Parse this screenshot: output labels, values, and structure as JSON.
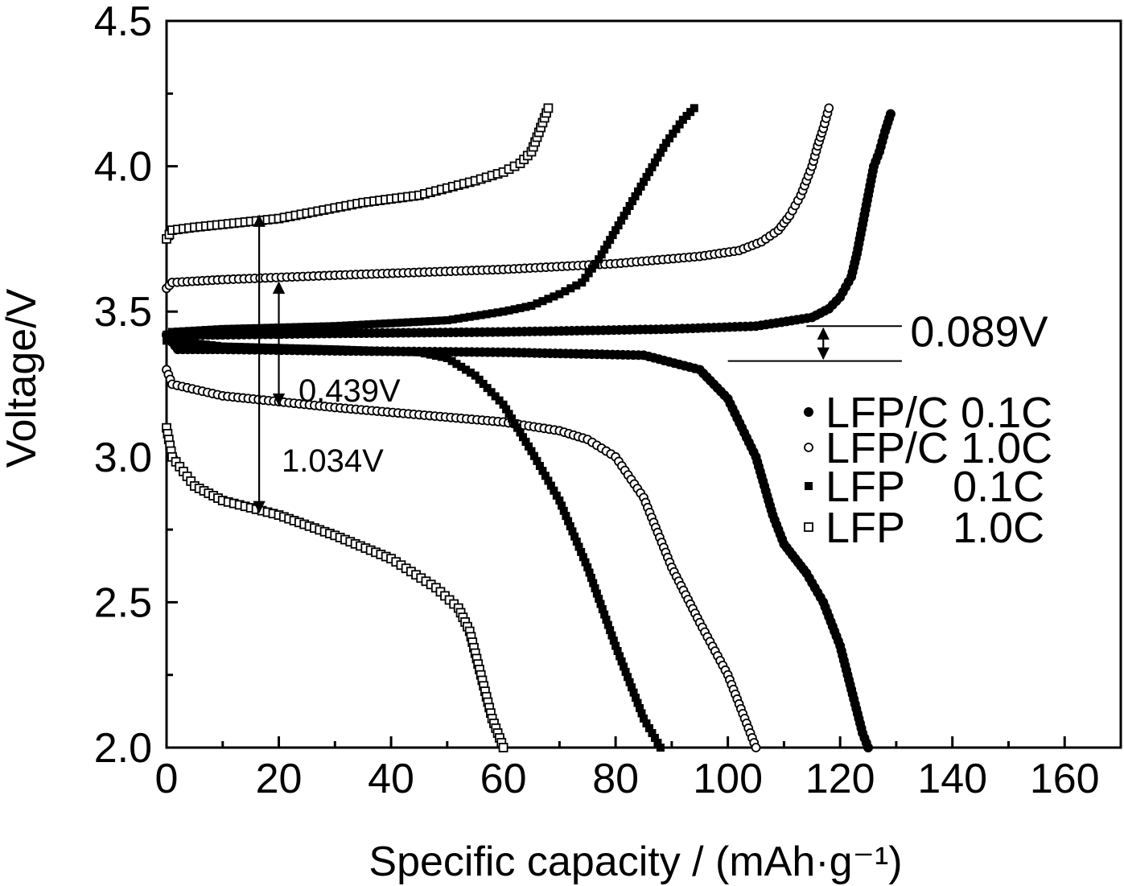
{
  "chart_data": {
    "type": "scatter",
    "title": "",
    "xlabel": "Specific capacity / (mAh·g⁻¹)",
    "ylabel": "Voltage/V",
    "xlim": [
      0,
      170
    ],
    "ylim": [
      2.0,
      4.5
    ],
    "xticks": [
      0,
      20,
      40,
      60,
      80,
      100,
      120,
      140,
      160
    ],
    "yticks": [
      2.0,
      2.5,
      3.0,
      3.5,
      4.0,
      4.5
    ],
    "xtick_labels": [
      "0",
      "20",
      "40",
      "60",
      "80",
      "100",
      "120",
      "140",
      "160"
    ],
    "ytick_labels": [
      "2.0",
      "2.5",
      "3.0",
      "3.5",
      "4.0",
      "4.5"
    ],
    "legend_position": "right-center",
    "series": [
      {
        "name": "LFP/C 0.1C",
        "legend_label": "LFP/C 0.1C",
        "marker": "filled-circle",
        "charge": {
          "x": [
            0,
            2,
            10,
            30,
            60,
            90,
            105,
            115,
            118,
            120,
            122,
            123,
            124,
            125,
            126,
            127,
            128,
            129
          ],
          "y": [
            3.42,
            3.42,
            3.42,
            3.425,
            3.43,
            3.44,
            3.45,
            3.48,
            3.51,
            3.55,
            3.62,
            3.7,
            3.8,
            3.9,
            4.0,
            4.05,
            4.12,
            4.18
          ]
        },
        "discharge": {
          "x": [
            0,
            2,
            10,
            30,
            60,
            85,
            95,
            100,
            105,
            108,
            110,
            112,
            114,
            117,
            120,
            122,
            124,
            125
          ],
          "y": [
            3.42,
            3.37,
            3.37,
            3.365,
            3.36,
            3.35,
            3.3,
            3.2,
            3.0,
            2.8,
            2.7,
            2.65,
            2.6,
            2.5,
            2.35,
            2.2,
            2.05,
            2.0
          ]
        }
      },
      {
        "name": "LFP/C 1.0C",
        "legend_label": "LFP/C 1.0C",
        "marker": "open-circle",
        "charge": {
          "x": [
            0,
            1,
            10,
            30,
            60,
            80,
            95,
            102,
            106,
            109,
            111,
            113,
            114,
            115,
            116,
            117,
            118
          ],
          "y": [
            3.58,
            3.6,
            3.61,
            3.625,
            3.645,
            3.665,
            3.69,
            3.71,
            3.74,
            3.78,
            3.83,
            3.9,
            3.95,
            4.0,
            4.07,
            4.13,
            4.2
          ]
        },
        "discharge": {
          "x": [
            0,
            1,
            10,
            30,
            60,
            70,
            75,
            80,
            85,
            90,
            95,
            100,
            103,
            105
          ],
          "y": [
            3.3,
            3.25,
            3.21,
            3.17,
            3.12,
            3.09,
            3.06,
            3.0,
            2.86,
            2.62,
            2.43,
            2.25,
            2.1,
            2.0
          ]
        }
      },
      {
        "name": "LFP 0.1C",
        "legend_label": "LFP    0.1C",
        "marker": "filled-square",
        "charge": {
          "x": [
            0,
            1,
            10,
            30,
            50,
            60,
            65,
            70,
            74,
            77,
            80,
            83,
            86,
            89,
            92,
            94
          ],
          "y": [
            3.4,
            3.43,
            3.44,
            3.45,
            3.47,
            3.5,
            3.52,
            3.56,
            3.6,
            3.68,
            3.78,
            3.88,
            3.98,
            4.08,
            4.16,
            4.2
          ]
        },
        "discharge": {
          "x": [
            0,
            1,
            10,
            30,
            45,
            50,
            55,
            60,
            65,
            70,
            75,
            80,
            85,
            88
          ],
          "y": [
            3.42,
            3.4,
            3.38,
            3.37,
            3.36,
            3.34,
            3.28,
            3.18,
            3.02,
            2.85,
            2.62,
            2.35,
            2.1,
            2.0
          ]
        }
      },
      {
        "name": "LFP 1.0C",
        "legend_label": "LFP    1.0C",
        "marker": "open-square",
        "charge": {
          "x": [
            0,
            1,
            5,
            20,
            35,
            45,
            55,
            60,
            63,
            65,
            66,
            67,
            68
          ],
          "y": [
            3.75,
            3.78,
            3.79,
            3.82,
            3.875,
            3.9,
            3.95,
            3.98,
            4.01,
            4.05,
            4.1,
            4.15,
            4.2
          ]
        },
        "discharge": {
          "x": [
            0,
            1,
            3,
            5,
            10,
            20,
            30,
            40,
            48,
            52,
            54,
            56,
            58,
            60
          ],
          "y": [
            3.1,
            3.0,
            2.95,
            2.9,
            2.85,
            2.8,
            2.73,
            2.65,
            2.55,
            2.48,
            2.4,
            2.25,
            2.1,
            2.0
          ]
        }
      }
    ],
    "annotations": [
      {
        "text": "0.089V",
        "x1": 117,
        "y1": 3.45,
        "y2": 3.33
      },
      {
        "text": "0.439V",
        "x1": 20,
        "y1": 3.6,
        "y2": 3.18
      },
      {
        "text": "1.034V",
        "x1": 16.5,
        "y1": 3.83,
        "y2": 2.81
      }
    ]
  }
}
